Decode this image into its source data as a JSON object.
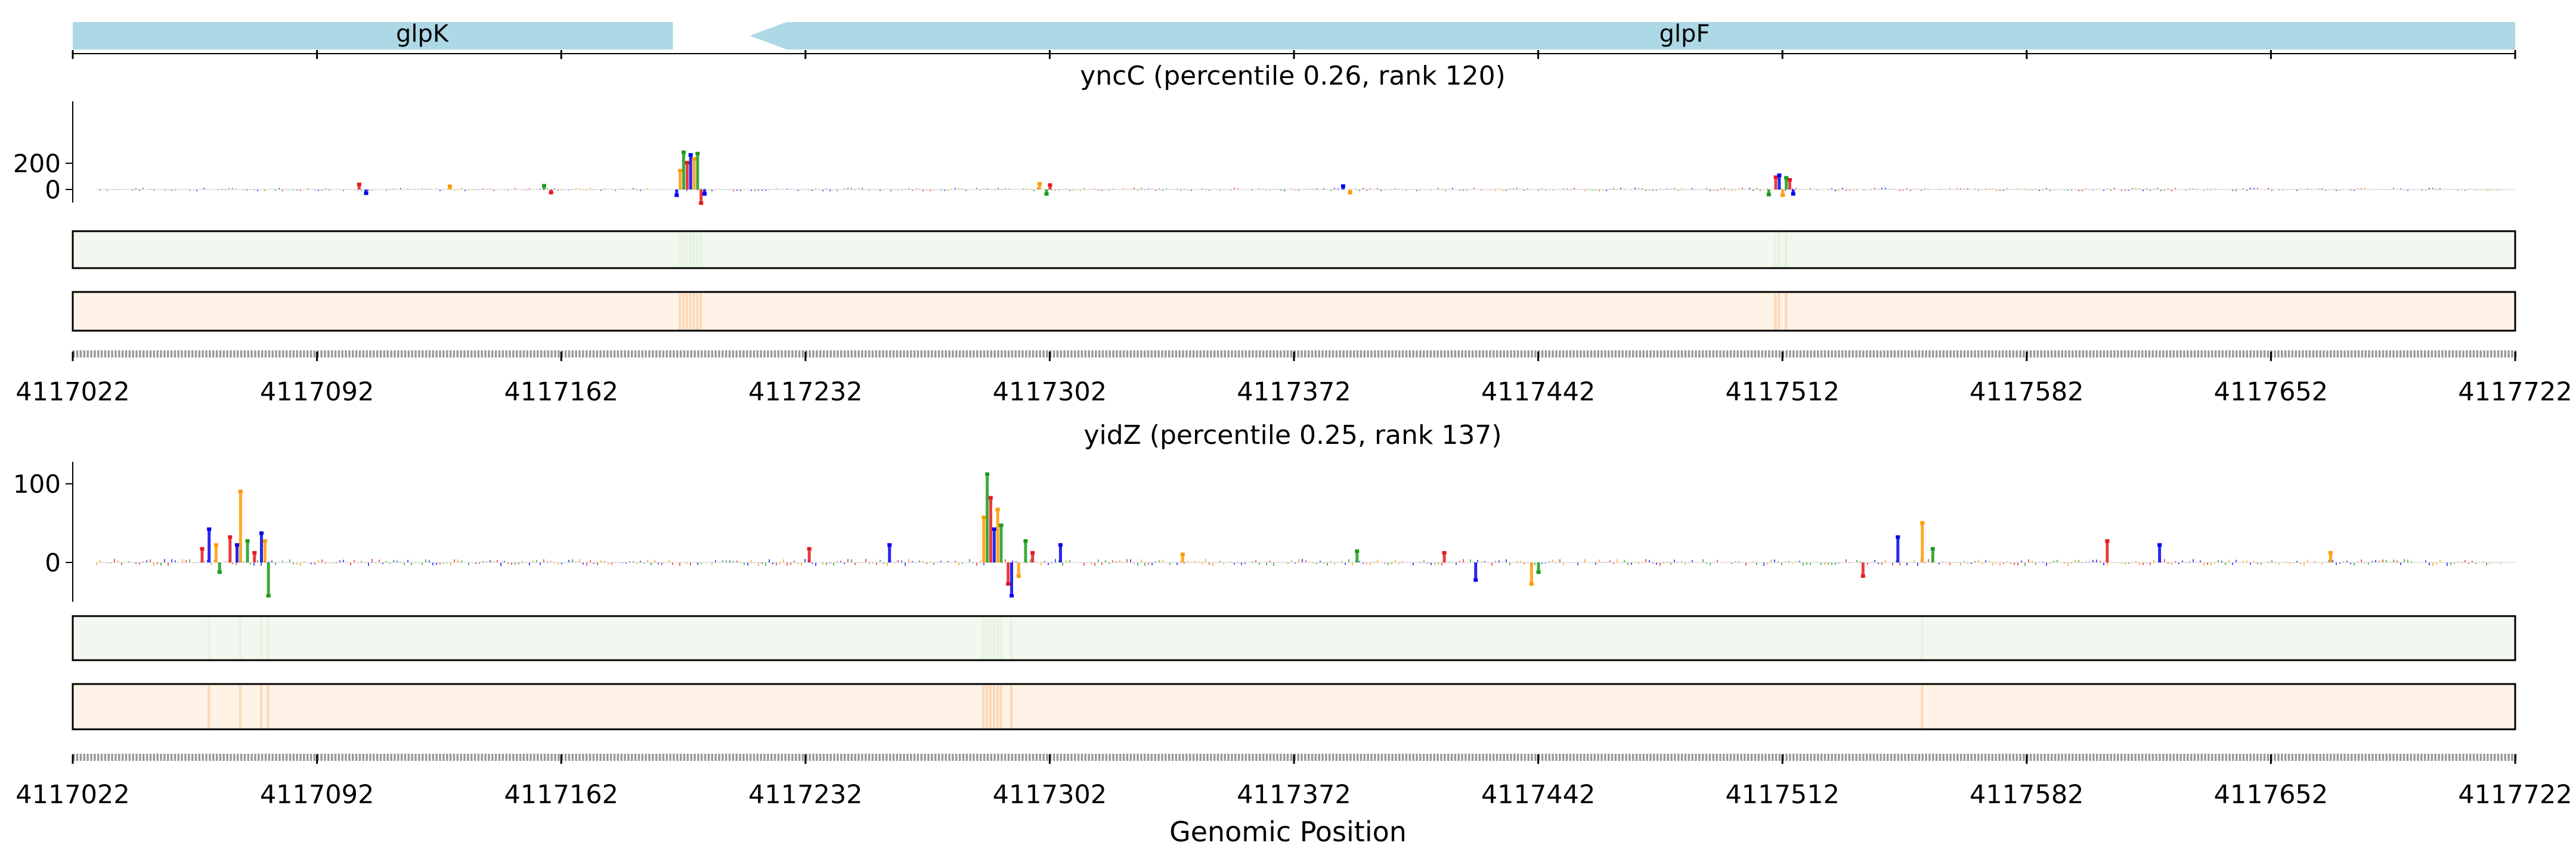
{
  "genes": [
    {
      "name": "glpK",
      "start": 4117022,
      "end": 4117194,
      "strand": "+",
      "color": "#add8e6"
    },
    {
      "name": "glpF",
      "start": 4117216,
      "end": 4117722,
      "strand": "-",
      "color": "#add8e6"
    }
  ],
  "chart_data": [
    {
      "type": "bar",
      "title": "yncC (percentile 0.26, rank 120)",
      "yticks": [
        0,
        200
      ],
      "ylim": [
        -100,
        280
      ],
      "xlim": [
        4117022,
        4117722
      ],
      "xticks": [
        4117022,
        4117092,
        4117162,
        4117232,
        4117302,
        4117372,
        4117442,
        4117512,
        4117582,
        4117652,
        4117722
      ],
      "xtick_labels": [
        "4117022",
        "4117092",
        "4117162",
        "4117232",
        "4117302",
        "4117372",
        "4117442",
        "4117512",
        "4117582",
        "4117652",
        "4117722"
      ],
      "peaks": [
        {
          "x": 4117104,
          "y": 25
        },
        {
          "x": 4117106,
          "y": -15
        },
        {
          "x": 4117130,
          "y": 10
        },
        {
          "x": 4117157,
          "y": 15
        },
        {
          "x": 4117159,
          "y": -10
        },
        {
          "x": 4117195,
          "y": -30
        },
        {
          "x": 4117196,
          "y": 130
        },
        {
          "x": 4117197,
          "y": 270
        },
        {
          "x": 4117198,
          "y": 190
        },
        {
          "x": 4117199,
          "y": 250
        },
        {
          "x": 4117200,
          "y": 220
        },
        {
          "x": 4117201,
          "y": 260
        },
        {
          "x": 4117202,
          "y": -90
        },
        {
          "x": 4117203,
          "y": -20
        },
        {
          "x": 4117299,
          "y": 30
        },
        {
          "x": 4117301,
          "y": -20
        },
        {
          "x": 4117302,
          "y": 20
        },
        {
          "x": 4117386,
          "y": 12
        },
        {
          "x": 4117388,
          "y": -10
        },
        {
          "x": 4117508,
          "y": -25
        },
        {
          "x": 4117510,
          "y": 80
        },
        {
          "x": 4117511,
          "y": 95
        },
        {
          "x": 4117512,
          "y": -30
        },
        {
          "x": 4117513,
          "y": 75
        },
        {
          "x": 4117514,
          "y": 60
        },
        {
          "x": 4117515,
          "y": -20
        }
      ]
    },
    {
      "type": "bar",
      "title": "yidZ (percentile 0.25, rank 137)",
      "yticks": [
        0,
        100
      ],
      "ylim": [
        -50,
        115
      ],
      "xlim": [
        4117022,
        4117722
      ],
      "xticks": [
        4117022,
        4117092,
        4117162,
        4117232,
        4117302,
        4117372,
        4117442,
        4117512,
        4117582,
        4117652,
        4117722
      ],
      "xtick_labels": [
        "4117022",
        "4117092",
        "4117162",
        "4117232",
        "4117302",
        "4117372",
        "4117442",
        "4117512",
        "4117582",
        "4117652",
        "4117722"
      ],
      "peaks": [
        {
          "x": 4117059,
          "y": 15
        },
        {
          "x": 4117061,
          "y": 40
        },
        {
          "x": 4117063,
          "y": 20
        },
        {
          "x": 4117064,
          "y": -10
        },
        {
          "x": 4117067,
          "y": 30
        },
        {
          "x": 4117069,
          "y": 20
        },
        {
          "x": 4117070,
          "y": 88
        },
        {
          "x": 4117072,
          "y": 25
        },
        {
          "x": 4117074,
          "y": 10
        },
        {
          "x": 4117076,
          "y": 35
        },
        {
          "x": 4117077,
          "y": 25
        },
        {
          "x": 4117078,
          "y": -40
        },
        {
          "x": 4117233,
          "y": 15
        },
        {
          "x": 4117256,
          "y": 20
        },
        {
          "x": 4117283,
          "y": 55
        },
        {
          "x": 4117284,
          "y": 110
        },
        {
          "x": 4117285,
          "y": 80
        },
        {
          "x": 4117286,
          "y": 40
        },
        {
          "x": 4117287,
          "y": 65
        },
        {
          "x": 4117288,
          "y": 45
        },
        {
          "x": 4117290,
          "y": -25
        },
        {
          "x": 4117291,
          "y": -40
        },
        {
          "x": 4117293,
          "y": -15
        },
        {
          "x": 4117295,
          "y": 25
        },
        {
          "x": 4117297,
          "y": 10
        },
        {
          "x": 4117305,
          "y": 20
        },
        {
          "x": 4117340,
          "y": 8
        },
        {
          "x": 4117390,
          "y": 12
        },
        {
          "x": 4117415,
          "y": 10
        },
        {
          "x": 4117424,
          "y": -20
        },
        {
          "x": 4117440,
          "y": -25
        },
        {
          "x": 4117442,
          "y": -10
        },
        {
          "x": 4117535,
          "y": -15
        },
        {
          "x": 4117545,
          "y": 30
        },
        {
          "x": 4117552,
          "y": 48
        },
        {
          "x": 4117555,
          "y": 15
        },
        {
          "x": 4117605,
          "y": 25
        },
        {
          "x": 4117620,
          "y": 20
        },
        {
          "x": 4117669,
          "y": 10
        }
      ]
    }
  ],
  "base_colors": {
    "A": "#e31a1c",
    "C": "#0000ee",
    "G": "#ff9900",
    "T": "#1a9b1a"
  },
  "heatmap_colors": {
    "green": "#f2f8ef",
    "green_edge": "#e6f2e2",
    "orange": "#fff2e6",
    "orange_edge": "#fbd8b8"
  },
  "xlabel": "Genomic Position"
}
